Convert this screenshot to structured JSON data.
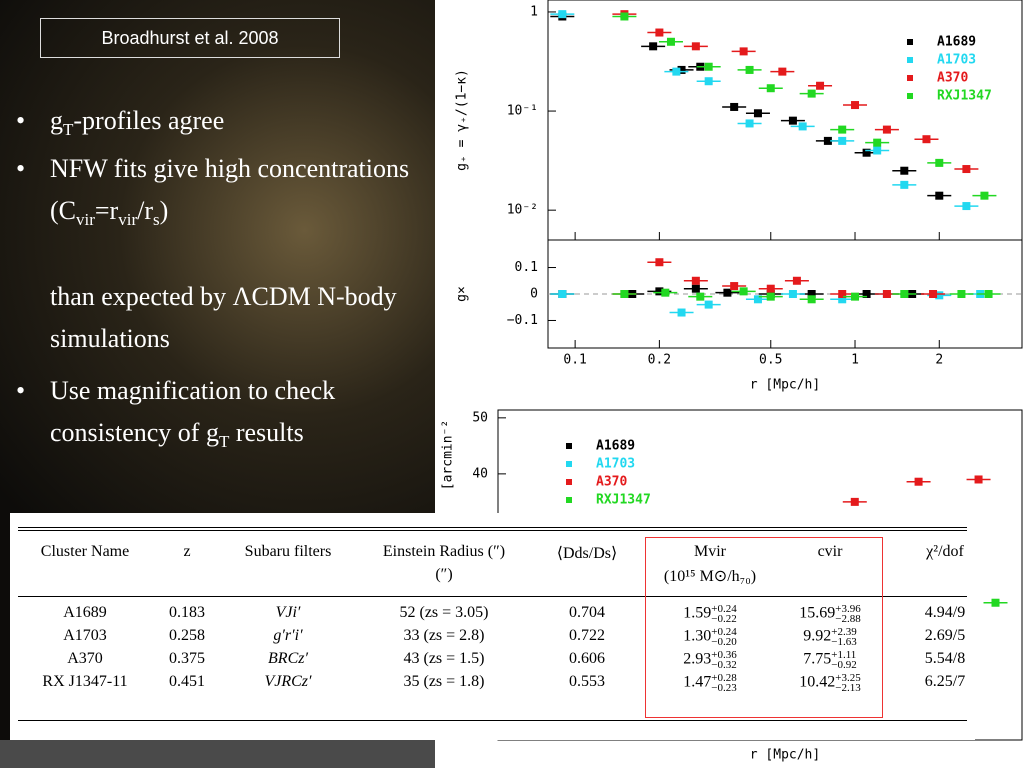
{
  "slide": {
    "title": "Broadhurst et al. 2008",
    "bullets": [
      [
        {
          "text": "g"
        },
        {
          "sub": "T"
        },
        {
          "text": "-profiles agree"
        }
      ],
      [
        {
          "text": "NFW fits give high concentrations (C"
        },
        {
          "sub": "vir"
        },
        {
          "text": "=r"
        },
        {
          "sub": "vir"
        },
        {
          "text": "/r"
        },
        {
          "sub": "s"
        },
        {
          "text": ")"
        }
      ],
      [
        {
          "text": "Use magnification to check consistency of g"
        },
        {
          "sub": "T"
        },
        {
          "text": " results"
        }
      ]
    ],
    "continuation": "than expected by ΛCDM N-body simulations",
    "bullet_symbol": "•"
  },
  "chart_data": [
    {
      "type": "scatter",
      "ylabel": "g₊ = γ₊/(1−κ)",
      "xlog": true,
      "ylog": true,
      "xlim": [
        0.08,
        3.95
      ],
      "ylim": [
        0.005,
        1.32
      ],
      "yticks": [
        {
          "value": 1,
          "label": "1"
        },
        {
          "value": 0.1,
          "label": "10⁻¹"
        },
        {
          "value": 0.01,
          "label": "10⁻²"
        }
      ],
      "legend": "upper right",
      "series": [
        {
          "name": "A1689",
          "color": "#000000",
          "x": [
            0.09,
            0.19,
            0.24,
            0.28,
            0.37,
            0.45,
            0.6,
            0.8,
            1.1,
            1.5,
            2.0
          ],
          "values": [
            0.9,
            0.45,
            0.26,
            0.28,
            0.11,
            0.095,
            0.08,
            0.05,
            0.038,
            0.025,
            0.014
          ]
        },
        {
          "name": "A1703",
          "color": "#22d8f0",
          "x": [
            0.09,
            0.23,
            0.3,
            0.42,
            0.65,
            0.9,
            1.2,
            1.5,
            2.5
          ],
          "values": [
            0.95,
            0.25,
            0.2,
            0.075,
            0.07,
            0.05,
            0.04,
            0.018,
            0.011
          ]
        },
        {
          "name": "A370",
          "color": "#e41a1c",
          "x": [
            0.15,
            0.2,
            0.27,
            0.4,
            0.55,
            0.75,
            1.0,
            1.3,
            1.8,
            2.5
          ],
          "values": [
            0.95,
            0.62,
            0.45,
            0.4,
            0.25,
            0.18,
            0.115,
            0.065,
            0.052,
            0.026
          ]
        },
        {
          "name": "RXJ1347",
          "color": "#22d822",
          "x": [
            0.15,
            0.22,
            0.3,
            0.42,
            0.5,
            0.7,
            0.9,
            1.2,
            2.0,
            2.9
          ],
          "values": [
            0.9,
            0.5,
            0.28,
            0.26,
            0.17,
            0.15,
            0.065,
            0.048,
            0.03,
            0.014
          ]
        }
      ]
    },
    {
      "type": "scatter",
      "ylabel": "g×",
      "xlabel": "r [Mpc/h]",
      "xlog": true,
      "xlim": [
        0.08,
        3.95
      ],
      "ylim": [
        -0.204,
        0.204
      ],
      "xticks": [
        0.1,
        0.2,
        0.5,
        1,
        2
      ],
      "yticks": [
        0.1,
        0,
        {
          "value": -0.1,
          "label": "−0.1"
        }
      ],
      "series": [
        {
          "name": "A1689",
          "color": "#000000",
          "x": [
            0.09,
            0.16,
            0.2,
            0.27,
            0.35,
            0.5,
            0.7,
            1.1,
            1.6
          ],
          "values": [
            0,
            0,
            0.01,
            0.02,
            0.005,
            0,
            0,
            0,
            0
          ]
        },
        {
          "name": "A1703",
          "color": "#22d8f0",
          "x": [
            0.09,
            0.24,
            0.3,
            0.45,
            0.6,
            0.9,
            1.3,
            2.0,
            2.8
          ],
          "values": [
            0,
            -0.07,
            -0.04,
            -0.02,
            0,
            -0.02,
            0,
            -0.005,
            0
          ]
        },
        {
          "name": "A370",
          "color": "#e41a1c",
          "x": [
            0.15,
            0.2,
            0.27,
            0.37,
            0.5,
            0.62,
            0.9,
            1.3,
            1.9
          ],
          "values": [
            0,
            0.12,
            0.05,
            0.03,
            0.02,
            0.05,
            0,
            0,
            0
          ]
        },
        {
          "name": "RXJ1347",
          "color": "#22d822",
          "x": [
            0.15,
            0.21,
            0.28,
            0.4,
            0.5,
            0.7,
            1.0,
            1.5,
            2.4,
            3.0
          ],
          "values": [
            0,
            0.005,
            -0.01,
            0.01,
            -0.01,
            -0.02,
            -0.01,
            0,
            0,
            0
          ]
        }
      ]
    },
    {
      "type": "scatter",
      "ylabel": "[arcmin⁻²",
      "xlabel": "r [Mpc/h]",
      "xlog": true,
      "xlim": [
        0.07,
        4
      ],
      "ylim": [
        -7.5,
        51.4
      ],
      "yticks": [
        40,
        50
      ],
      "legend": "upper left",
      "series": [
        {
          "name": "A1689",
          "color": "#000000",
          "x": [],
          "values": []
        },
        {
          "name": "A1703",
          "color": "#22d8f0",
          "x": [],
          "values": []
        },
        {
          "name": "A370",
          "color": "#e41a1c",
          "x": [
            1.1,
            1.8,
            2.86
          ],
          "values": [
            35,
            38.6,
            39
          ]
        },
        {
          "name": "RXJ1347",
          "color": "#22d822",
          "x": [
            3.26
          ],
          "values": [
            17
          ]
        }
      ]
    }
  ],
  "table": {
    "header": [
      "Cluster Name",
      "z",
      "Subaru filters",
      "Einstein Radius (″)",
      "⟨Dds/Ds⟩",
      "Mvir",
      "cvir",
      "χ²/dof"
    ],
    "header2": {
      "einstein": "(″)",
      "mvir": "(10¹⁵ M⊙/h₇₀)"
    },
    "rows": [
      {
        "name": "A1689",
        "z": "0.183",
        "filters": "VJi′",
        "einstein": "52 (zs = 3.05)",
        "dds": "0.704",
        "mvir": [
          "1.59",
          "+0.24",
          "−0.22"
        ],
        "cvir": [
          "15.69",
          "+3.96",
          "−2.88"
        ],
        "chi2": "4.94/9"
      },
      {
        "name": "A1703",
        "z": "0.258",
        "filters": "g′r′i′",
        "einstein": "33 (zs = 2.8)",
        "dds": "0.722",
        "mvir": [
          "1.30",
          "+0.24",
          "−0.20"
        ],
        "cvir": [
          "9.92",
          "+2.39",
          "−1.63"
        ],
        "chi2": "2.69/5"
      },
      {
        "name": "A370",
        "z": "0.375",
        "filters": "BRCz′",
        "einstein": "43 (zs = 1.5)",
        "dds": "0.606",
        "mvir": [
          "2.93",
          "+0.36",
          "−0.32"
        ],
        "cvir": [
          "7.75",
          "+1.11",
          "−0.92"
        ],
        "chi2": "5.54/8"
      },
      {
        "name": "RX J1347-11",
        "z": "0.451",
        "filters": "VJRCz′",
        "einstein": "35 (zs = 1.8)",
        "dds": "0.553",
        "mvir": [
          "1.47",
          "+0.28",
          "−0.23"
        ],
        "cvir": [
          "10.42",
          "+3.25",
          "−2.13"
        ],
        "chi2": "6.25/7"
      }
    ]
  }
}
